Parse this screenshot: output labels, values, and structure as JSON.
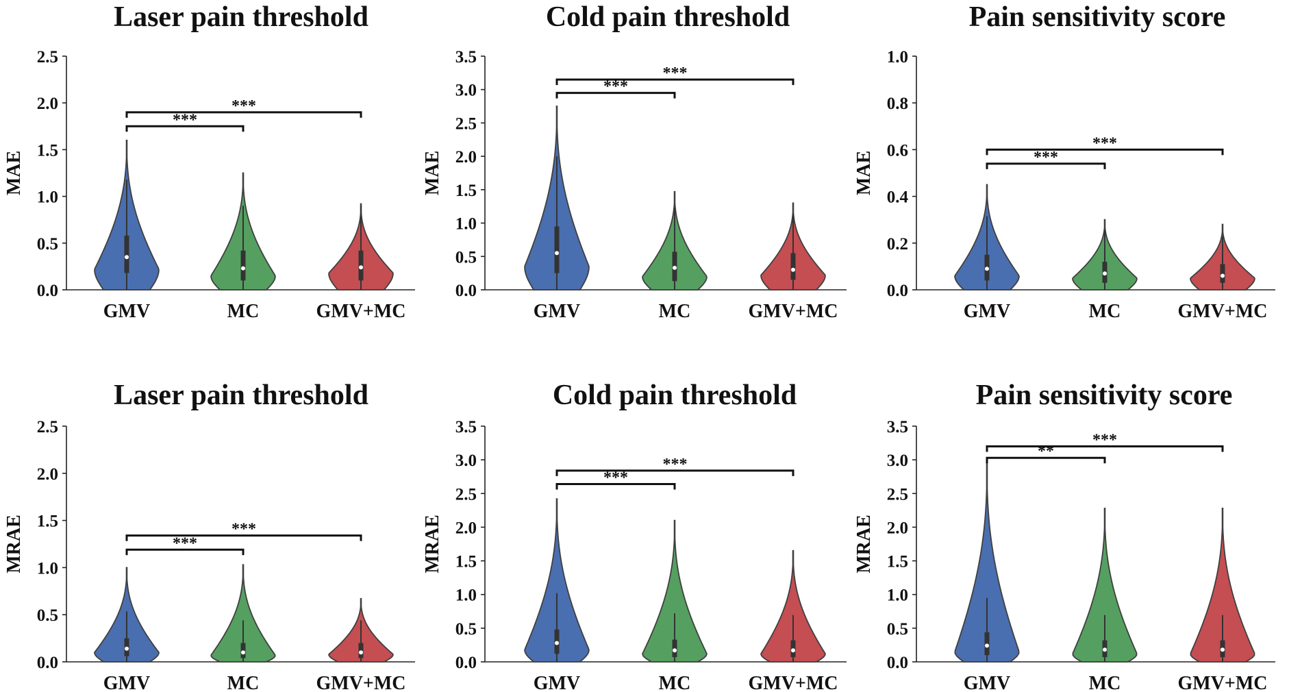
{
  "chart_data": [
    {
      "type": "violin",
      "title": "Laser pain threshold",
      "ylabel": "MAE",
      "ylim": [
        0,
        2.5
      ],
      "yticks": [
        "0.0",
        "0.5",
        "1.0",
        "1.5",
        "2.0",
        "2.5"
      ],
      "categories": [
        "GMV",
        "MC",
        "GMV+MC"
      ],
      "series": [
        {
          "name": "GMV",
          "color": "#4a6fb0",
          "max": 1.6,
          "median": 0.35,
          "q1": 0.18,
          "q3": 0.58,
          "mode": 0.22
        },
        {
          "name": "MC",
          "color": "#55a060",
          "max": 1.25,
          "median": 0.23,
          "q1": 0.1,
          "q3": 0.42,
          "mode": 0.15
        },
        {
          "name": "GMV+MC",
          "color": "#c44e52",
          "max": 0.92,
          "median": 0.24,
          "q1": 0.1,
          "q3": 0.42,
          "mode": 0.18
        }
      ],
      "comparisons": [
        {
          "from": "GMV",
          "to": "MC",
          "y": 1.75,
          "label": "***"
        },
        {
          "from": "GMV",
          "to": "GMV+MC",
          "y": 1.9,
          "label": "***"
        }
      ]
    },
    {
      "type": "violin",
      "title": "Cold pain threshold",
      "ylabel": "MAE",
      "ylim": [
        0,
        3.5
      ],
      "yticks": [
        "0.0",
        "0.5",
        "1.0",
        "1.5",
        "2.0",
        "2.5",
        "3.0",
        "3.5"
      ],
      "categories": [
        "GMV",
        "MC",
        "GMV+MC"
      ],
      "series": [
        {
          "name": "GMV",
          "color": "#4a6fb0",
          "max": 2.75,
          "median": 0.55,
          "q1": 0.25,
          "q3": 0.95,
          "mode": 0.35
        },
        {
          "name": "MC",
          "color": "#55a060",
          "max": 1.47,
          "median": 0.33,
          "q1": 0.13,
          "q3": 0.57,
          "mode": 0.2
        },
        {
          "name": "GMV+MC",
          "color": "#c44e52",
          "max": 1.3,
          "median": 0.3,
          "q1": 0.15,
          "q3": 0.55,
          "mode": 0.22
        }
      ],
      "comparisons": [
        {
          "from": "GMV",
          "to": "MC",
          "y": 2.95,
          "label": "***"
        },
        {
          "from": "GMV",
          "to": "GMV+MC",
          "y": 3.15,
          "label": "***"
        }
      ]
    },
    {
      "type": "violin",
      "title": "Pain sensitivity score",
      "ylabel": "MAE",
      "ylim": [
        0,
        1.0
      ],
      "yticks": [
        "0.0",
        "0.2",
        "0.4",
        "0.6",
        "0.8",
        "1.0"
      ],
      "categories": [
        "GMV",
        "MC",
        "GMV+MC"
      ],
      "series": [
        {
          "name": "GMV",
          "color": "#4a6fb0",
          "max": 0.45,
          "median": 0.09,
          "q1": 0.04,
          "q3": 0.15,
          "mode": 0.06
        },
        {
          "name": "MC",
          "color": "#55a060",
          "max": 0.3,
          "median": 0.07,
          "q1": 0.03,
          "q3": 0.12,
          "mode": 0.05
        },
        {
          "name": "GMV+MC",
          "color": "#c44e52",
          "max": 0.28,
          "median": 0.06,
          "q1": 0.03,
          "q3": 0.11,
          "mode": 0.05
        }
      ],
      "comparisons": [
        {
          "from": "GMV",
          "to": "MC",
          "y": 0.54,
          "label": "***"
        },
        {
          "from": "GMV",
          "to": "GMV+MC",
          "y": 0.6,
          "label": "***"
        }
      ]
    },
    {
      "type": "violin",
      "title": "Laser pain threshold",
      "ylabel": "MRAE",
      "ylim": [
        0,
        2.5
      ],
      "yticks": [
        "0.0",
        "0.5",
        "1.0",
        "1.5",
        "2.0",
        "2.5"
      ],
      "categories": [
        "GMV",
        "MC",
        "GMV+MC"
      ],
      "series": [
        {
          "name": "GMV",
          "color": "#4a6fb0",
          "max": 1.0,
          "median": 0.14,
          "q1": 0.06,
          "q3": 0.25,
          "mode": 0.1
        },
        {
          "name": "MC",
          "color": "#55a060",
          "max": 1.03,
          "median": 0.1,
          "q1": 0.04,
          "q3": 0.2,
          "mode": 0.07
        },
        {
          "name": "GMV+MC",
          "color": "#c44e52",
          "max": 0.67,
          "median": 0.1,
          "q1": 0.04,
          "q3": 0.2,
          "mode": 0.08
        }
      ],
      "comparisons": [
        {
          "from": "GMV",
          "to": "MC",
          "y": 1.19,
          "label": "***"
        },
        {
          "from": "GMV",
          "to": "GMV+MC",
          "y": 1.34,
          "label": "***"
        }
      ]
    },
    {
      "type": "violin",
      "title": "Cold pain threshold",
      "ylabel": "MRAE",
      "ylim": [
        0,
        3.5
      ],
      "yticks": [
        "0.0",
        "0.5",
        "1.0",
        "1.5",
        "2.0",
        "2.5",
        "3.0",
        "3.5"
      ],
      "categories": [
        "GMV",
        "MC",
        "GMV+MC"
      ],
      "series": [
        {
          "name": "GMV",
          "color": "#4a6fb0",
          "max": 2.42,
          "median": 0.28,
          "q1": 0.12,
          "q3": 0.48,
          "mode": 0.18
        },
        {
          "name": "MC",
          "color": "#55a060",
          "max": 2.1,
          "median": 0.17,
          "q1": 0.07,
          "q3": 0.33,
          "mode": 0.12
        },
        {
          "name": "GMV+MC",
          "color": "#c44e52",
          "max": 1.65,
          "median": 0.17,
          "q1": 0.07,
          "q3": 0.32,
          "mode": 0.12
        }
      ],
      "comparisons": [
        {
          "from": "GMV",
          "to": "MC",
          "y": 2.64,
          "label": "***"
        },
        {
          "from": "GMV",
          "to": "GMV+MC",
          "y": 2.84,
          "label": "***"
        }
      ]
    },
    {
      "type": "violin",
      "title": "Pain sensitivity score",
      "ylabel": "MRAE",
      "ylim": [
        0,
        3.5
      ],
      "yticks": [
        "0.0",
        "0.5",
        "1.0",
        "1.5",
        "2.0",
        "2.5",
        "3.0",
        "3.5"
      ],
      "categories": [
        "GMV",
        "MC",
        "GMV+MC"
      ],
      "series": [
        {
          "name": "GMV",
          "color": "#4a6fb0",
          "max": 2.95,
          "median": 0.24,
          "q1": 0.1,
          "q3": 0.44,
          "mode": 0.15
        },
        {
          "name": "MC",
          "color": "#55a060",
          "max": 2.28,
          "median": 0.18,
          "q1": 0.07,
          "q3": 0.32,
          "mode": 0.12
        },
        {
          "name": "GMV+MC",
          "color": "#c44e52",
          "max": 2.28,
          "median": 0.18,
          "q1": 0.07,
          "q3": 0.32,
          "mode": 0.12
        }
      ],
      "comparisons": [
        {
          "from": "GMV",
          "to": "MC",
          "y": 3.03,
          "label": "**"
        },
        {
          "from": "GMV",
          "to": "GMV+MC",
          "y": 3.2,
          "label": "***"
        }
      ]
    }
  ]
}
